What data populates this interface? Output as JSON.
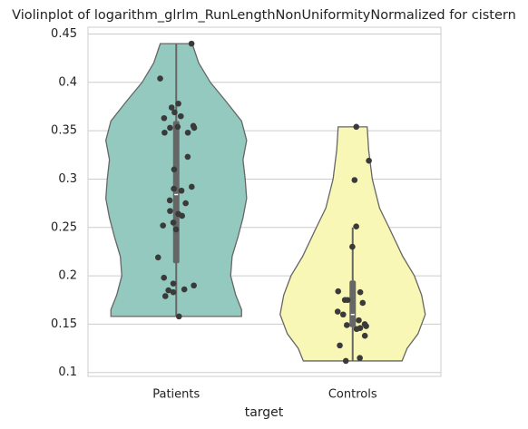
{
  "chart_data": {
    "type": "violin",
    "title": "Violinplot of logarithm_glrlm_RunLengthNonUniformityNormalized for cistern",
    "x_label": "target",
    "categories": [
      "Patients",
      "Controls"
    ],
    "ylim": [
      0.096,
      0.457
    ],
    "yticks": [
      0.1,
      0.15,
      0.2,
      0.25,
      0.3,
      0.35,
      0.4,
      0.45
    ],
    "grid": true,
    "point_color": "#3a3a3a",
    "box_color": "#666666",
    "groups": [
      {
        "color": "#93c9bf",
        "points": [
          0.44,
          0.404,
          0.378,
          0.374,
          0.369,
          0.365,
          0.363,
          0.353,
          0.354,
          0.355,
          0.348,
          0.348,
          0.353,
          0.323,
          0.31,
          0.292,
          0.29,
          0.288,
          0.278,
          0.275,
          0.264,
          0.262,
          0.255,
          0.252,
          0.267,
          0.248,
          0.219,
          0.198,
          0.192,
          0.19,
          0.186,
          0.185,
          0.183,
          0.179,
          0.158
        ],
        "density_y": [
          0.44,
          0.42,
          0.4,
          0.38,
          0.36,
          0.34,
          0.32,
          0.3,
          0.28,
          0.26,
          0.24,
          0.22,
          0.2,
          0.18,
          0.165,
          0.158
        ],
        "density": [
          0.22,
          0.31,
          0.47,
          0.69,
          0.9,
          0.97,
          0.92,
          0.95,
          0.97,
          0.92,
          0.85,
          0.77,
          0.75,
          0.82,
          0.9,
          0.9
        ],
        "box": {
          "whisker_low": 0.158,
          "q1": 0.213,
          "median": 0.284,
          "q3": 0.36,
          "whisker_high": 0.44
        }
      },
      {
        "color": "#f9f7b5",
        "points": [
          0.354,
          0.319,
          0.299,
          0.251,
          0.23,
          0.184,
          0.183,
          0.175,
          0.175,
          0.172,
          0.163,
          0.16,
          0.154,
          0.15,
          0.149,
          0.148,
          0.146,
          0.145,
          0.138,
          0.128,
          0.115,
          0.112
        ],
        "density_y": [
          0.354,
          0.33,
          0.3,
          0.27,
          0.25,
          0.22,
          0.2,
          0.18,
          0.16,
          0.14,
          0.125,
          0.112
        ],
        "density": [
          0.2,
          0.22,
          0.27,
          0.37,
          0.5,
          0.69,
          0.85,
          0.95,
          1.0,
          0.9,
          0.75,
          0.68
        ],
        "box": {
          "whisker_low": 0.112,
          "q1": 0.147,
          "median": 0.16,
          "q3": 0.195,
          "whisker_high": 0.25
        }
      }
    ]
  }
}
